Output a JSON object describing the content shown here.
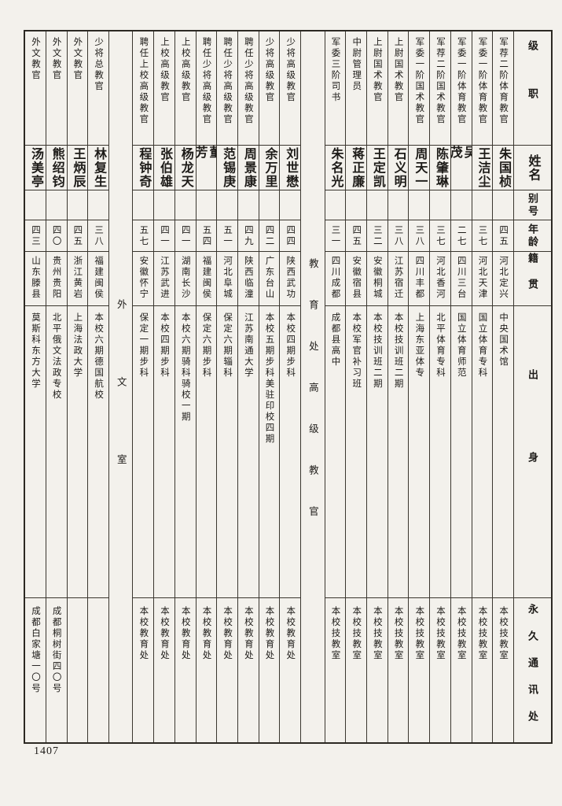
{
  "page": {
    "number": "1407"
  },
  "table": {
    "row_headers": {
      "rank": "级职",
      "name": "姓名",
      "alias": "别号",
      "age": "年龄",
      "origin": "籍贯",
      "background": "出身",
      "address": "永久通讯处"
    },
    "columns": [
      {
        "type": "person",
        "rank": "军荐二阶体育教官",
        "name": "朱国桢",
        "alias": "",
        "age": "四五",
        "origin": "河北定兴",
        "background": "中央国术馆",
        "address": "本校技教室"
      },
      {
        "type": "person",
        "rank": "军委一阶体育教官",
        "name": "王洁尘",
        "alias": "",
        "age": "三七",
        "origin": "河北天津",
        "background": "国立体育专科",
        "address": "本校技教室"
      },
      {
        "type": "person",
        "rank": "军委一阶体育教官",
        "name": "吴茂",
        "alias": "",
        "age": "二七",
        "origin": "四川三台",
        "background": "国立体育师范",
        "address": "本校技教室"
      },
      {
        "type": "person",
        "rank": "军荐二阶国术教官",
        "name": "陈肇琳",
        "alias": "",
        "age": "三七",
        "origin": "河北香河",
        "background": "北平体育专科",
        "address": "本校技教室"
      },
      {
        "type": "person",
        "rank": "军委一阶国术教官",
        "name": "周天一",
        "alias": "",
        "age": "三八",
        "origin": "四川丰都",
        "background": "上海东亚体专",
        "address": "本校技教室"
      },
      {
        "type": "person",
        "rank": "上尉国术教官",
        "name": "石义明",
        "alias": "",
        "age": "三八",
        "origin": "江苏宿迁",
        "background": "本校技训班二期",
        "address": "本校技教室"
      },
      {
        "type": "person",
        "rank": "上尉国术教官",
        "name": "王定凯",
        "alias": "",
        "age": "三二",
        "origin": "安徽桐城",
        "background": "本校技训班二期",
        "address": "本校技教室"
      },
      {
        "type": "person",
        "rank": "中尉管理员",
        "name": "蒋正廉",
        "alias": "",
        "age": "四五",
        "origin": "安徽宿县",
        "background": "本校军官补习班",
        "address": "本校技教室"
      },
      {
        "type": "person",
        "rank": "军委三阶司书",
        "name": "朱名光",
        "alias": "",
        "age": "三一",
        "origin": "四川成都",
        "background": "成都县高中",
        "address": "本校技教室"
      },
      {
        "type": "divider",
        "label": "教育处高级教官"
      },
      {
        "type": "person",
        "rank": "少将高级教官",
        "name": "刘世懋",
        "alias": "",
        "age": "四四",
        "origin": "陕西武功",
        "background": "本校四期步科",
        "address": "本校教育处"
      },
      {
        "type": "person",
        "rank": "少将高级教官",
        "name": "余万里",
        "alias": "",
        "age": "四二",
        "origin": "广东台山",
        "background": "本校五期步科美驻印校四期",
        "address": "本校教育处"
      },
      {
        "type": "person",
        "rank": "聘任少将高级教官",
        "name": "周景康",
        "alias": "",
        "age": "四九",
        "origin": "陕西临潼",
        "background": "江苏南通大学",
        "address": "本校教育处"
      },
      {
        "type": "person",
        "rank": "聘任少将高级教官",
        "name": "范锡庚",
        "alias": "",
        "age": "五一",
        "origin": "河北阜城",
        "background": "保定六期辎科",
        "address": "本校教育处"
      },
      {
        "type": "person",
        "rank": "聘任少将高级教官",
        "name": "董芳",
        "alias": "",
        "age": "五四",
        "origin": "福建闽侯",
        "background": "保定六期步科",
        "address": "本校教育处"
      },
      {
        "type": "person",
        "rank": "上校高级教官",
        "name": "杨龙天",
        "alias": "",
        "age": "四一",
        "origin": "湖南长沙",
        "background": "本校六期骑科骑校一期",
        "address": "本校教育处"
      },
      {
        "type": "person",
        "rank": "上校高级教官",
        "name": "张伯雄",
        "alias": "",
        "age": "四一",
        "origin": "江苏武进",
        "background": "本校四期步科",
        "address": "本校教育处"
      },
      {
        "type": "person",
        "rank": "聘任上校高级教官",
        "name": "程钟奇",
        "alias": "",
        "age": "五七",
        "origin": "安徽怀宁",
        "background": "保定一期步科",
        "address": "本校教育处"
      },
      {
        "type": "divider",
        "label": "外文室"
      },
      {
        "type": "person",
        "rank": "少将总教官",
        "name": "林复生",
        "alias": "",
        "age": "三八",
        "origin": "福建闽侯",
        "background": "本校六期德国航校",
        "address": ""
      },
      {
        "type": "person",
        "rank": "外文教官",
        "name": "王炳辰",
        "alias": "",
        "age": "四五",
        "origin": "浙江黄岩",
        "background": "上海法政大学",
        "address": ""
      },
      {
        "type": "person",
        "rank": "外文教官",
        "name": "熊绍钧",
        "alias": "",
        "age": "四〇",
        "origin": "贵州贵阳",
        "background": "北平俄文法政专校",
        "address": "成都桐树街四〇号"
      },
      {
        "type": "person",
        "rank": "外文教官",
        "name": "汤美亭",
        "alias": "",
        "age": "四三",
        "origin": "山东滕县",
        "background": "莫斯科东方大学",
        "address": "成都白家塘一〇号"
      }
    ]
  }
}
